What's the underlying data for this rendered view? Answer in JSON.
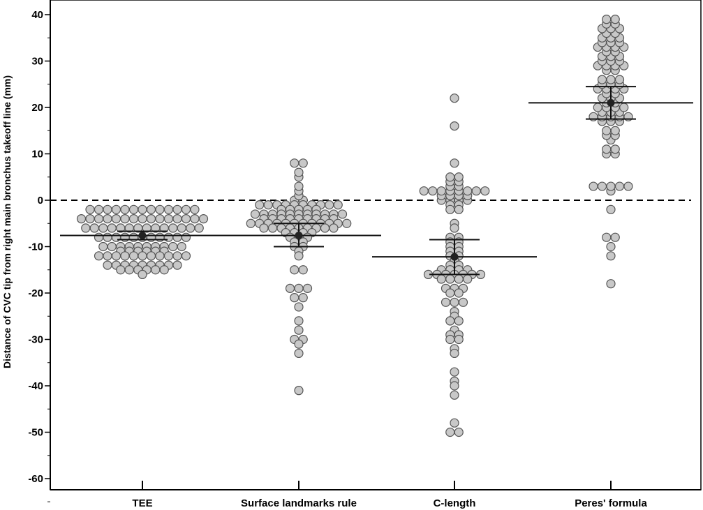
{
  "chart_data": {
    "type": "scatter",
    "subtype": "dot-plot-with-mean-and-ci",
    "title": "",
    "xlabel": "",
    "ylabel": "Distance of CVC tip from right main bronchus takeoff line (mm)",
    "ylim": [
      -63,
      40
    ],
    "y_ticks": [
      40,
      30,
      20,
      10,
      0,
      -10,
      -20,
      -30,
      -40,
      -50,
      -60
    ],
    "y_tick_labels": [
      "40",
      "30",
      "20",
      "10",
      "0",
      "-10",
      "-20",
      "-30",
      "-40",
      "-50",
      "-60"
    ],
    "grid": false,
    "reference_line": {
      "y": 0,
      "style": "dashed"
    },
    "categories": [
      "TEE",
      "Surface landmarks rule",
      "C-length",
      "Peres' formula"
    ],
    "colors": {
      "dot_fill": "#c8c8c8",
      "dot_stroke": "#555555",
      "mean": "#222222",
      "axis": "#000000"
    },
    "series": [
      {
        "category": "TEE",
        "mean": -7.6,
        "ci": [
          -8.5,
          -6.7
        ],
        "values": [
          -2,
          -2,
          -2,
          -2,
          -2,
          -2,
          -2,
          -2,
          -2,
          -2,
          -2,
          -2,
          -2,
          -4,
          -4,
          -4,
          -4,
          -4,
          -4,
          -4,
          -4,
          -4,
          -4,
          -4,
          -4,
          -4,
          -4,
          -4,
          -6,
          -6,
          -6,
          -6,
          -6,
          -6,
          -6,
          -6,
          -6,
          -6,
          -6,
          -6,
          -6,
          -6,
          -8,
          -8,
          -8,
          -8,
          -8,
          -8,
          -8,
          -8,
          -8,
          -8,
          -8,
          -10,
          -10,
          -10,
          -10,
          -10,
          -10,
          -10,
          -10,
          -10,
          -10,
          -11,
          -11,
          -11,
          -11,
          -11,
          -11,
          -12,
          -12,
          -12,
          -12,
          -12,
          -12,
          -12,
          -12,
          -12,
          -12,
          -12,
          -14,
          -14,
          -14,
          -14,
          -14,
          -14,
          -14,
          -14,
          -14,
          -15,
          -15,
          -15,
          -15,
          -15,
          -15,
          -16
        ]
      },
      {
        "category": "Surface landmarks rule",
        "mean": -7.6,
        "ci": [
          -10,
          -5
        ],
        "values": [
          8,
          8,
          6,
          5,
          3,
          2,
          0,
          0,
          1,
          -1,
          -1,
          -1,
          -1,
          -1,
          -1,
          -1,
          -1,
          -1,
          -1,
          -2,
          -2,
          -2,
          -2,
          -2,
          -3,
          -3,
          -3,
          -3,
          -3,
          -3,
          -3,
          -3,
          -3,
          -3,
          -3,
          -4,
          -4,
          -4,
          -4,
          -4,
          -4,
          -4,
          -4,
          -4,
          -5,
          -5,
          -5,
          -5,
          -5,
          -5,
          -5,
          -5,
          -5,
          -5,
          -5,
          -5,
          -6,
          -6,
          -6,
          -6,
          -6,
          -6,
          -6,
          -6,
          -6,
          -7,
          -7,
          -7,
          -7,
          -8,
          -8,
          -8,
          -9,
          -9,
          -10,
          -10,
          -11,
          -12,
          -15,
          -15,
          -19,
          -19,
          -19,
          -21,
          -21,
          -23,
          -26,
          -28,
          -30,
          -30,
          -31,
          -33,
          -41
        ]
      },
      {
        "category": "C-length",
        "mean": -12.2,
        "ci": [
          -16,
          -8.5
        ],
        "values": [
          22,
          16,
          8,
          5,
          5,
          4,
          4,
          3,
          3,
          2,
          2,
          2,
          2,
          2,
          2,
          2,
          2,
          1,
          1,
          1,
          1,
          0,
          0,
          0,
          0,
          -1,
          -1,
          -2,
          -2,
          -5,
          -6,
          -8,
          -8,
          -9,
          -9,
          -10,
          -10,
          -11,
          -11,
          -12,
          -12,
          -13,
          -14,
          -14,
          -15,
          -15,
          -15,
          -15,
          -16,
          -16,
          -16,
          -16,
          -16,
          -16,
          -16,
          -17,
          -17,
          -17,
          -17,
          -19,
          -19,
          -19,
          -20,
          -20,
          -22,
          -22,
          -22,
          -24,
          -25,
          -26,
          -26,
          -28,
          -29,
          -29,
          -30,
          -30,
          -32,
          -33,
          -37,
          -39,
          -40,
          -42,
          -48,
          -50,
          -50
        ]
      },
      {
        "category": "Peres' formula",
        "mean": 21,
        "ci": [
          17.5,
          24.5
        ],
        "values": [
          39,
          39,
          38,
          38,
          37,
          37,
          37,
          36,
          36,
          35,
          35,
          35,
          34,
          34,
          34,
          33,
          33,
          33,
          33,
          32,
          32,
          31,
          31,
          31,
          30,
          30,
          30,
          29,
          29,
          29,
          29,
          28,
          28,
          26,
          26,
          26,
          25,
          25,
          25,
          24,
          24,
          24,
          24,
          23,
          23,
          22,
          22,
          22,
          21,
          21,
          20,
          20,
          20,
          20,
          19,
          19,
          19,
          18,
          18,
          18,
          18,
          18,
          17,
          17,
          17,
          15,
          15,
          14,
          14,
          13,
          11,
          11,
          10,
          10,
          3,
          3,
          3,
          3,
          3,
          2,
          -2,
          -8,
          -8,
          -10,
          -12,
          -18
        ]
      }
    ]
  }
}
